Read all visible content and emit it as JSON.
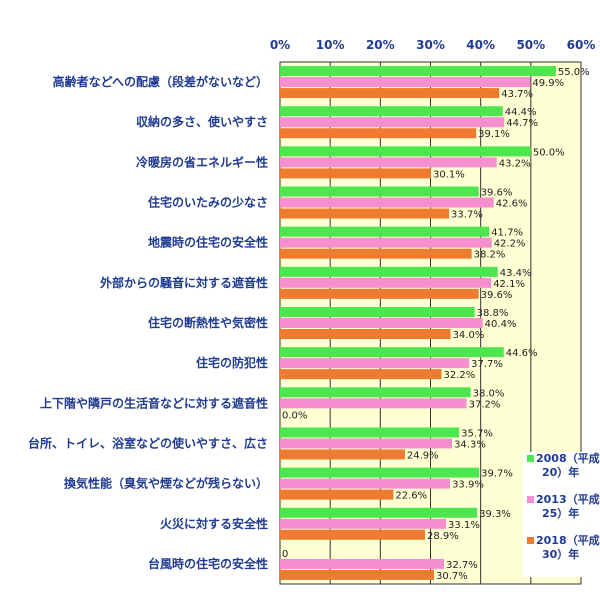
{
  "chart_data": {
    "type": "bar",
    "orientation": "horizontal",
    "categories": [
      "高齢者などへの配慮（段差がないなど）",
      "収納の多さ、使いやすさ",
      "冷暖房の省エネルギー性",
      "住宅のいたみの少なさ",
      "地震時の住宅の安全性",
      "外部からの騒音に対する遮音性",
      "住宅の断熱性や気密性",
      "住宅の防犯性",
      "上下階や隣戸の生活音などに対する遮音性",
      "台所、トイレ、浴室などの使いやすさ、広さ",
      "換気性能（臭気や煙などが残らない）",
      "火災に対する安全性",
      "台風時の住宅の安全性"
    ],
    "series": [
      {
        "name": "2008（平成20）年",
        "name_lines": [
          "2008（平成",
          "20）年"
        ],
        "color": "#4ee64e",
        "values": [
          55.0,
          44.4,
          50.0,
          39.6,
          41.7,
          43.4,
          38.8,
          44.6,
          38.0,
          35.7,
          39.7,
          39.3,
          0
        ],
        "labels": [
          "55.0%",
          "44.4%",
          "50.0%",
          "39.6%",
          "41.7%",
          "43.4%",
          "38.8%",
          "44.6%",
          "38.0%",
          "35.7%",
          "39.7%",
          "39.3%",
          "0"
        ]
      },
      {
        "name": "2013（平成25）年",
        "name_lines": [
          "2013（平成",
          "25）年"
        ],
        "color": "#f68fd0",
        "values": [
          49.9,
          44.7,
          43.2,
          42.6,
          42.2,
          42.1,
          40.4,
          37.7,
          37.2,
          34.3,
          33.9,
          33.1,
          32.7
        ],
        "labels": [
          "49.9%",
          "44.7%",
          "43.2%",
          "42.6%",
          "42.2%",
          "42.1%",
          "40.4%",
          "37.7%",
          "37.2%",
          "34.3%",
          "33.9%",
          "33.1%",
          "32.7%"
        ]
      },
      {
        "name": "2018（平成30）年",
        "name_lines": [
          "2018（平成",
          "30）年"
        ],
        "color": "#ee7b30",
        "values": [
          43.7,
          39.1,
          30.1,
          33.7,
          38.2,
          39.6,
          34.0,
          32.2,
          0.0,
          24.9,
          22.6,
          28.9,
          30.7
        ],
        "labels": [
          "43.7%",
          "39.1%",
          "30.1%",
          "33.7%",
          "38.2%",
          "39.6%",
          "34.0%",
          "32.2%",
          "0.0%",
          "24.9%",
          "22.6%",
          "28.9%",
          "30.7%"
        ]
      }
    ],
    "xlim": [
      0,
      60
    ],
    "ticks": [
      "0%",
      "10%",
      "20%",
      "30%",
      "40%",
      "50%",
      "60%"
    ],
    "grid": true,
    "plot_background": "#ffffd4",
    "legend_position": "bottom-right-inside"
  }
}
